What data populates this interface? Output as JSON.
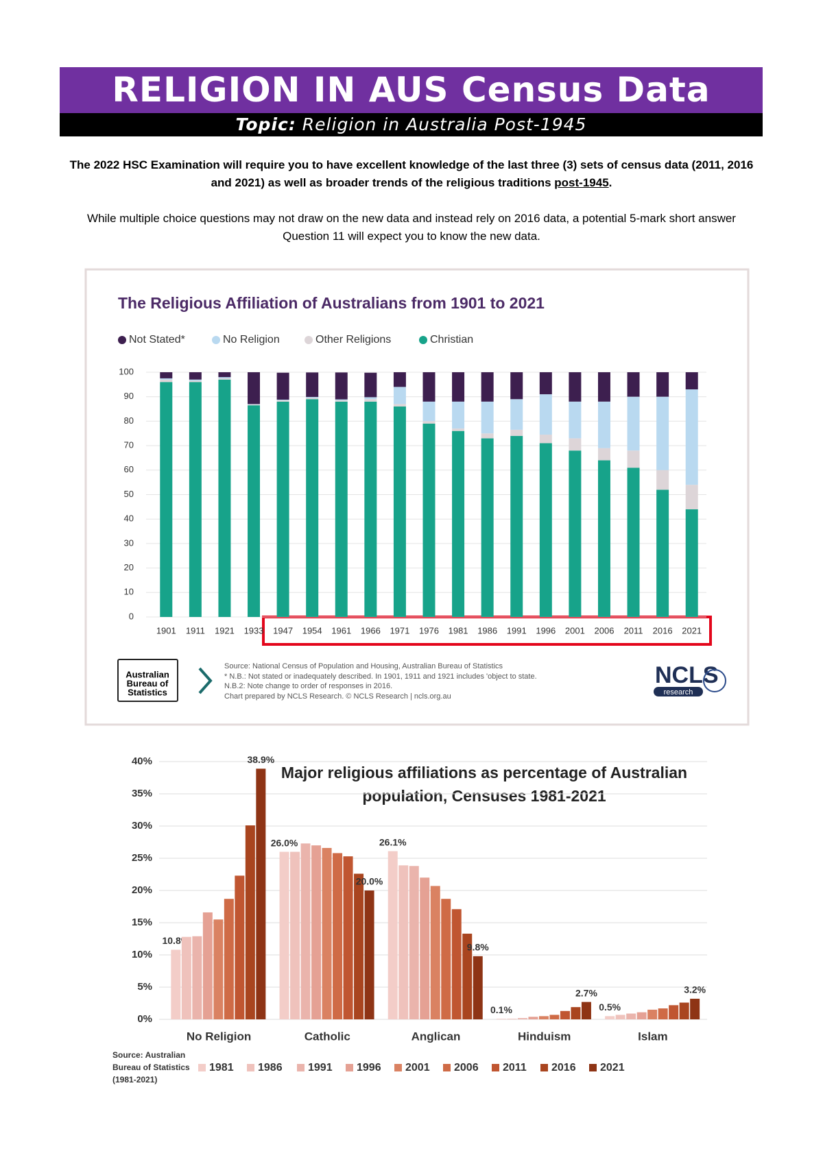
{
  "header": {
    "title": "RELIGION IN AUS Census Data",
    "topic_label": "Topic:",
    "topic": "Religion in Australia Post-1945"
  },
  "intro": {
    "p1": "The 2022 HSC Examination will require you to have excellent knowledge of the last three (3) sets of census data (2011, 2016 and 2021) as well as broader trends of the religious traditions ",
    "p1_underlined": "post-1945",
    "p1_end": ".",
    "p2": "While multiple choice questions may not draw on the new data and instead rely on 2016 data, a potential 5-mark short answer Question 11 will expect you to know the new data."
  },
  "chart_data": [
    {
      "type": "stacked_bar",
      "title": "The Religious Affiliation of Australians from 1901 to 2021",
      "categories": [
        "1901",
        "1911",
        "1921",
        "1933",
        "1947",
        "1954",
        "1961",
        "1966",
        "1971",
        "1976",
        "1981",
        "1986",
        "1991",
        "1996",
        "2001",
        "2006",
        "2011",
        "2016",
        "2021"
      ],
      "series": [
        {
          "name": "Not Stated*",
          "color": "#3d1f4f",
          "values": [
            2.5,
            3,
            2,
            13,
            11,
            10,
            11,
            10,
            6,
            12,
            12,
            12,
            11,
            9,
            12,
            12,
            10,
            10,
            7
          ]
        },
        {
          "name": "No Religion",
          "color": "#b9d9f0",
          "values": [
            0.5,
            0.5,
            0.5,
            0.2,
            0.3,
            0.4,
            0.4,
            0.8,
            7,
            8,
            11,
            13,
            12.5,
            16.5,
            15,
            19,
            22,
            30,
            39
          ]
        },
        {
          "name": "Other Religions",
          "color": "#ddd5d8",
          "values": [
            1,
            0.5,
            0.5,
            0.3,
            0.5,
            0.5,
            0.5,
            1,
            1,
            1,
            1,
            2,
            2.5,
            3.5,
            5,
            5,
            7,
            8,
            10
          ]
        },
        {
          "name": "Christian",
          "color": "#17a38a",
          "values": [
            96,
            96,
            97,
            86.5,
            88,
            89,
            88,
            88,
            86,
            79,
            76,
            73,
            74,
            71,
            68,
            64,
            61,
            52,
            44
          ]
        }
      ],
      "ylim": [
        0,
        100
      ],
      "yticks": [
        0,
        10,
        20,
        30,
        40,
        50,
        60,
        70,
        80,
        90,
        100
      ],
      "grid": true,
      "source": [
        "Source: National Census of Population and Housing, Australian Bureau of Statistics",
        "* N.B.: Not stated or inadequately described. In 1901, 1911 and 1921 includes 'object to state.",
        "N.B.2: Note change to order of responses in 2016.",
        "Chart prepared by NCLS Research. © NCLS Research | ncls.org.au"
      ],
      "logos": {
        "abs": [
          "Australian",
          "Bureau of",
          "Statistics"
        ],
        "ncls": [
          "NCLS",
          "research"
        ]
      }
    },
    {
      "type": "bar",
      "title": [
        "Major religious affiliations as percentage of Australian",
        "population, Censuses 1981-2021"
      ],
      "categories": [
        "No Religion",
        "Catholic",
        "Anglican",
        "Hinduism",
        "Islam"
      ],
      "series": [
        {
          "name": "1981",
          "color": "#f3cdc8",
          "values": [
            10.8,
            26.0,
            26.1,
            0.1,
            0.5
          ],
          "value_labels": [
            "10.8%",
            "26.0%",
            "26.1%",
            "0.1%",
            "0.5%"
          ]
        },
        {
          "name": "1986",
          "color": "#efc2bc",
          "values": [
            12.8,
            26.0,
            23.9,
            0.1,
            0.7
          ]
        },
        {
          "name": "1991",
          "color": "#eab4ac",
          "values": [
            12.9,
            27.3,
            23.8,
            0.2,
            0.9
          ]
        },
        {
          "name": "1996",
          "color": "#e5a194",
          "values": [
            16.6,
            27.0,
            22.0,
            0.4,
            1.1
          ]
        },
        {
          "name": "2001",
          "color": "#da8262",
          "values": [
            15.5,
            26.6,
            20.7,
            0.5,
            1.5
          ]
        },
        {
          "name": "2006",
          "color": "#cf6b46",
          "values": [
            18.7,
            25.8,
            18.7,
            0.7,
            1.7
          ]
        },
        {
          "name": "2011",
          "color": "#c05631",
          "values": [
            22.3,
            25.3,
            17.1,
            1.3,
            2.2
          ]
        },
        {
          "name": "2016",
          "color": "#a9451f",
          "values": [
            30.1,
            22.6,
            13.3,
            1.9,
            2.6
          ]
        },
        {
          "name": "2021",
          "color": "#8e3415",
          "values": [
            38.9,
            20.0,
            9.8,
            2.7,
            3.2
          ],
          "value_labels": [
            "38.9%",
            "20.0%",
            "9.8%",
            "2.7%",
            "3.2%"
          ]
        }
      ],
      "ylim": [
        0,
        40
      ],
      "yticks": [
        {
          "value": 0,
          "label": "0%"
        },
        {
          "value": 5,
          "label": "5%"
        },
        {
          "value": 10,
          "label": "10%"
        },
        {
          "value": 15,
          "label": "15%"
        },
        {
          "value": 20,
          "label": "20%"
        },
        {
          "value": 25,
          "label": "25%"
        },
        {
          "value": 30,
          "label": "30%"
        },
        {
          "value": 35,
          "label": "35%"
        },
        {
          "value": 40,
          "label": "40%"
        }
      ],
      "grid": true,
      "source": [
        "Source: Australian",
        "Bureau of Statistics",
        "(1981-2021)"
      ]
    }
  ]
}
